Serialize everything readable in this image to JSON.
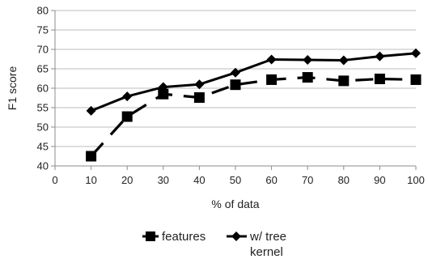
{
  "chart_data": {
    "type": "line",
    "x": [
      10,
      20,
      30,
      40,
      50,
      60,
      70,
      80,
      90,
      100
    ],
    "series": [
      {
        "name": "features",
        "values": [
          42.5,
          52.7,
          58.5,
          57.6,
          60.9,
          62.2,
          62.8,
          61.9,
          62.4,
          62.2
        ],
        "line_style": "dashed",
        "marker": "square"
      },
      {
        "name": "w/ tree kernel",
        "values": [
          54.2,
          57.9,
          60.3,
          61.0,
          64.0,
          67.4,
          67.3,
          67.2,
          68.2,
          69.0
        ],
        "line_style": "solid",
        "marker": "diamond"
      }
    ],
    "xlabel": "% of data",
    "ylabel": "F1 score",
    "xlim": [
      0,
      100
    ],
    "ylim": [
      40,
      80
    ],
    "x_ticks": [
      "0",
      "10",
      "20",
      "30",
      "40",
      "50",
      "60",
      "70",
      "80",
      "90",
      "100"
    ],
    "y_ticks": [
      "40",
      "45",
      "50",
      "55",
      "60",
      "65",
      "70",
      "75",
      "80"
    ],
    "grid": "horizontal",
    "legend_position": "bottom",
    "legend": [
      "features",
      "w/ tree kernel"
    ],
    "colors": {
      "series": "#000000",
      "grid": "#bdbdbd",
      "axis": "#8c8c8c"
    }
  }
}
